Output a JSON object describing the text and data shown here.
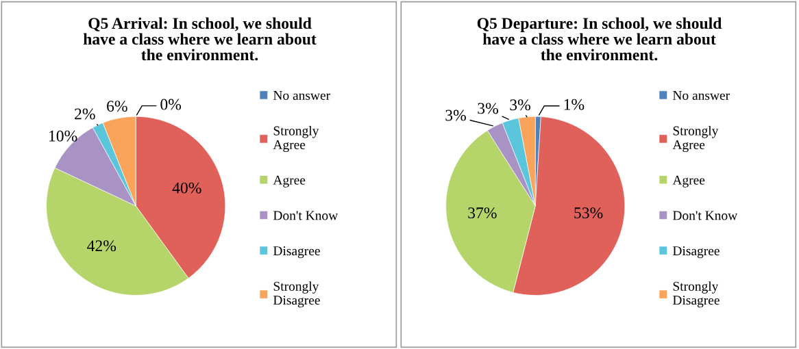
{
  "chart_data": [
    {
      "type": "pie",
      "title": "Q5 Arrival: In school, we should have a class where we learn about the environment.",
      "categories": [
        "No answer",
        "Strongly Agree",
        "Agree",
        "Don't Know",
        "Disagree",
        "Strongly Disagree"
      ],
      "values": [
        0,
        40,
        42,
        10,
        2,
        6
      ],
      "value_labels": [
        "0%",
        "40%",
        "42%",
        "10%",
        "2%",
        "6%"
      ],
      "colors": [
        "#4f81bd",
        "#e0605a",
        "#b5d56a",
        "#a893c4",
        "#5bc5dc",
        "#f9a45a"
      ],
      "legend": "right"
    },
    {
      "type": "pie",
      "title": "Q5 Departure: In school, we should have a class where we learn about the environment.",
      "categories": [
        "No answer",
        "Strongly Agree",
        "Agree",
        "Don't Know",
        "Disagree",
        "Strongly Disagree"
      ],
      "values": [
        1,
        53,
        37,
        3,
        3,
        3
      ],
      "value_labels": [
        "1%",
        "53%",
        "37%",
        "3%",
        "3%",
        "3%"
      ],
      "colors": [
        "#4f81bd",
        "#e0605a",
        "#b5d56a",
        "#a893c4",
        "#5bc5dc",
        "#f9a45a"
      ],
      "legend": "right"
    }
  ]
}
